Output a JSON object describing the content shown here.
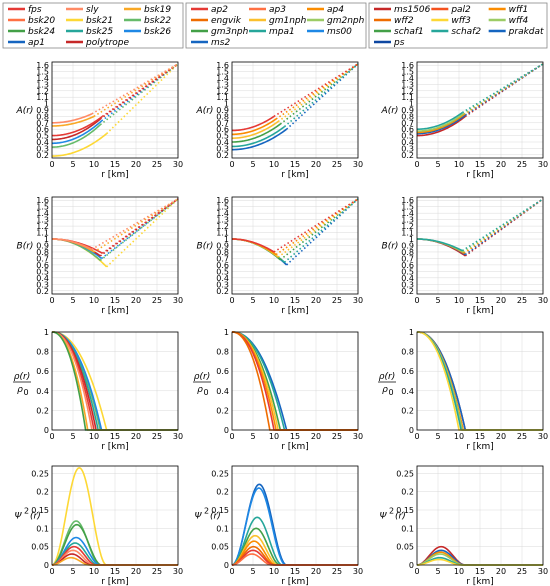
{
  "legends": [
    {
      "entries": [
        {
          "name": "fps",
          "color": "#e53935"
        },
        {
          "name": "sly",
          "color": "#ff8a65"
        },
        {
          "name": "bsk19",
          "color": "#f9a825"
        },
        {
          "name": "bsk20",
          "color": "#ff7043"
        },
        {
          "name": "bsk21",
          "color": "#fdd835"
        },
        {
          "name": "bsk22",
          "color": "#66bb6a"
        },
        {
          "name": "bsk24",
          "color": "#43a047"
        },
        {
          "name": "bsk25",
          "color": "#26a69a"
        },
        {
          "name": "bsk26",
          "color": "#1e88e5"
        },
        {
          "name": "ap1",
          "color": "#1565c0"
        },
        {
          "name": "polytrope",
          "color": "#c62828"
        }
      ]
    },
    {
      "entries": [
        {
          "name": "ap2",
          "color": "#e53935"
        },
        {
          "name": "ap3",
          "color": "#ff7043"
        },
        {
          "name": "ap4",
          "color": "#fb8c00"
        },
        {
          "name": "engvik",
          "color": "#ef6c00"
        },
        {
          "name": "gm1nph",
          "color": "#fbc02d"
        },
        {
          "name": "gm2nph",
          "color": "#9ccc65"
        },
        {
          "name": "gm3nph",
          "color": "#43a047"
        },
        {
          "name": "mpa1",
          "color": "#26a69a"
        },
        {
          "name": "ms00",
          "color": "#1e88e5"
        },
        {
          "name": "ms2",
          "color": "#1565c0"
        }
      ]
    },
    {
      "entries": [
        {
          "name": "ms1506",
          "color": "#c62828"
        },
        {
          "name": "pal2",
          "color": "#f4511e"
        },
        {
          "name": "wff1",
          "color": "#fb8c00"
        },
        {
          "name": "wff2",
          "color": "#ef6c00"
        },
        {
          "name": "wff3",
          "color": "#fdd835"
        },
        {
          "name": "wff4",
          "color": "#9ccc65"
        },
        {
          "name": "schaf1",
          "color": "#43a047"
        },
        {
          "name": "schaf2",
          "color": "#26a69a"
        },
        {
          "name": "prakdat",
          "color": "#1565c0"
        },
        {
          "name": "ps",
          "color": "#0d47a1"
        }
      ]
    }
  ],
  "row_labels": {
    "A": "A(r)",
    "B": "B(r)",
    "rho_num": "ρ(r)",
    "rho_den": "ρ",
    "rho_sub": "0",
    "psi": "Ψ",
    "psi_sup": "2",
    "psi_arg": "(r)"
  },
  "xlabel": "r [km]",
  "chart_data": [
    {
      "type": "line",
      "panel": "A(r) group 1",
      "xlabel": "r [km]",
      "ylabel": "A(r)",
      "xlim": [
        0,
        30
      ],
      "ylim": [
        0.15,
        1.65
      ],
      "xticks": [
        0,
        5,
        10,
        15,
        20,
        25,
        30
      ],
      "yticks": [
        0.2,
        0.3,
        0.4,
        0.5,
        0.6,
        0.7,
        0.8,
        0.9,
        1.0,
        1.1,
        1.2,
        1.3,
        1.4,
        1.5,
        1.6
      ],
      "grid": true,
      "series": [
        {
          "center_value": 0.18,
          "surface_radius": 13.0,
          "surface_value": 0.53,
          "color": "#fdd835"
        },
        {
          "center_value": 0.32,
          "surface_radius": 11.5,
          "surface_value": 0.67,
          "color": "#66bb6a"
        },
        {
          "center_value": 0.38,
          "surface_radius": 11.8,
          "surface_value": 0.73,
          "color": "#1e88e5"
        },
        {
          "center_value": 0.44,
          "surface_radius": 11.5,
          "surface_value": 0.76,
          "color": "#c62828"
        },
        {
          "center_value": 0.5,
          "surface_radius": 12.0,
          "surface_value": 0.8,
          "color": "#e53935"
        },
        {
          "center_value": 0.65,
          "surface_radius": 10.0,
          "surface_value": 0.8,
          "color": "#f9a825"
        },
        {
          "center_value": 0.7,
          "surface_radius": 9.5,
          "surface_value": 0.84,
          "color": "#ff8a65"
        }
      ]
    },
    {
      "type": "line",
      "panel": "A(r) group 2",
      "xlabel": "r [km]",
      "ylabel": "A(r)",
      "xlim": [
        0,
        30
      ],
      "ylim": [
        0.15,
        1.65
      ],
      "xticks": [
        0,
        5,
        10,
        15,
        20,
        25,
        30
      ],
      "yticks": [
        0.2,
        0.3,
        0.4,
        0.5,
        0.6,
        0.7,
        0.8,
        0.9,
        1.0,
        1.1,
        1.2,
        1.3,
        1.4,
        1.5,
        1.6
      ],
      "grid": true,
      "series": [
        {
          "center_value": 0.28,
          "surface_radius": 13.0,
          "surface_value": 0.6,
          "color": "#1565c0"
        },
        {
          "center_value": 0.33,
          "surface_radius": 12.5,
          "surface_value": 0.64,
          "color": "#26a69a"
        },
        {
          "center_value": 0.4,
          "surface_radius": 11.5,
          "surface_value": 0.68,
          "color": "#43a047"
        },
        {
          "center_value": 0.46,
          "surface_radius": 11.0,
          "surface_value": 0.72,
          "color": "#fbc02d"
        },
        {
          "center_value": 0.52,
          "surface_radius": 10.5,
          "surface_value": 0.76,
          "color": "#fb8c00"
        },
        {
          "center_value": 0.58,
          "surface_radius": 10.0,
          "surface_value": 0.8,
          "color": "#e53935"
        }
      ]
    },
    {
      "type": "line",
      "panel": "A(r) group 3",
      "xlabel": "r [km]",
      "ylabel": "A(r)",
      "xlim": [
        0,
        30
      ],
      "ylim": [
        0.15,
        1.65
      ],
      "xticks": [
        0,
        5,
        10,
        15,
        20,
        25,
        30
      ],
      "yticks": [
        0.2,
        0.3,
        0.4,
        0.5,
        0.6,
        0.7,
        0.8,
        0.9,
        1.0,
        1.1,
        1.2,
        1.3,
        1.4,
        1.5,
        1.6
      ],
      "grid": true,
      "series": [
        {
          "center_value": 0.5,
          "surface_radius": 11.5,
          "surface_value": 0.8,
          "color": "#c62828"
        },
        {
          "center_value": 0.53,
          "surface_radius": 11.5,
          "surface_value": 0.82,
          "color": "#1565c0"
        },
        {
          "center_value": 0.55,
          "surface_radius": 11.2,
          "surface_value": 0.83,
          "color": "#fb8c00"
        },
        {
          "center_value": 0.57,
          "surface_radius": 11.0,
          "surface_value": 0.84,
          "color": "#9ccc65"
        },
        {
          "center_value": 0.6,
          "surface_radius": 10.8,
          "surface_value": 0.86,
          "color": "#26a69a"
        }
      ]
    },
    {
      "type": "line",
      "panel": "B(r) group 1",
      "xlabel": "r [km]",
      "ylabel": "B(r)",
      "xlim": [
        0,
        30
      ],
      "ylim": [
        0.15,
        1.65
      ],
      "xticks": [
        0,
        5,
        10,
        15,
        20,
        25,
        30
      ],
      "yticks": [
        0.2,
        0.3,
        0.4,
        0.5,
        0.6,
        0.7,
        0.8,
        0.9,
        1.0,
        1.1,
        1.2,
        1.3,
        1.4,
        1.5,
        1.6
      ],
      "grid": true,
      "series": [
        {
          "center_value": 1.0,
          "surface_radius": 13.0,
          "surface_value": 0.57,
          "color": "#fdd835"
        },
        {
          "center_value": 1.0,
          "surface_radius": 11.5,
          "surface_value": 0.67,
          "color": "#66bb6a"
        },
        {
          "center_value": 1.0,
          "surface_radius": 11.8,
          "surface_value": 0.7,
          "color": "#1e88e5"
        },
        {
          "center_value": 1.0,
          "surface_radius": 11.5,
          "surface_value": 0.74,
          "color": "#c62828"
        },
        {
          "center_value": 1.0,
          "surface_radius": 12.0,
          "surface_value": 0.78,
          "color": "#e53935"
        },
        {
          "center_value": 1.0,
          "surface_radius": 10.0,
          "surface_value": 0.8,
          "color": "#f9a825"
        },
        {
          "center_value": 1.0,
          "surface_radius": 9.5,
          "surface_value": 0.84,
          "color": "#ff8a65"
        }
      ]
    },
    {
      "type": "line",
      "panel": "B(r) group 2",
      "xlabel": "r [km]",
      "ylabel": "B(r)",
      "xlim": [
        0,
        30
      ],
      "ylim": [
        0.15,
        1.65
      ],
      "xticks": [
        0,
        5,
        10,
        15,
        20,
        25,
        30
      ],
      "yticks": [
        0.2,
        0.3,
        0.4,
        0.5,
        0.6,
        0.7,
        0.8,
        0.9,
        1.0,
        1.1,
        1.2,
        1.3,
        1.4,
        1.5,
        1.6
      ],
      "grid": true,
      "series": [
        {
          "center_value": 1.0,
          "surface_radius": 13.0,
          "surface_value": 0.6,
          "color": "#1565c0"
        },
        {
          "center_value": 1.0,
          "surface_radius": 12.5,
          "surface_value": 0.64,
          "color": "#26a69a"
        },
        {
          "center_value": 1.0,
          "surface_radius": 11.5,
          "surface_value": 0.68,
          "color": "#43a047"
        },
        {
          "center_value": 1.0,
          "surface_radius": 11.0,
          "surface_value": 0.72,
          "color": "#fbc02d"
        },
        {
          "center_value": 1.0,
          "surface_radius": 10.5,
          "surface_value": 0.76,
          "color": "#fb8c00"
        },
        {
          "center_value": 1.0,
          "surface_radius": 10.0,
          "surface_value": 0.8,
          "color": "#e53935"
        }
      ]
    },
    {
      "type": "line",
      "panel": "B(r) group 3",
      "xlabel": "r [km]",
      "ylabel": "B(r)",
      "xlim": [
        0,
        30
      ],
      "ylim": [
        0.15,
        1.65
      ],
      "xticks": [
        0,
        5,
        10,
        15,
        20,
        25,
        30
      ],
      "yticks": [
        0.2,
        0.3,
        0.4,
        0.5,
        0.6,
        0.7,
        0.8,
        0.9,
        1.0,
        1.1,
        1.2,
        1.3,
        1.4,
        1.5,
        1.6
      ],
      "grid": true,
      "series": [
        {
          "center_value": 1.0,
          "surface_radius": 11.5,
          "surface_value": 0.74,
          "color": "#c62828"
        },
        {
          "center_value": 1.0,
          "surface_radius": 11.5,
          "surface_value": 0.76,
          "color": "#1565c0"
        },
        {
          "center_value": 1.0,
          "surface_radius": 11.2,
          "surface_value": 0.78,
          "color": "#fb8c00"
        },
        {
          "center_value": 1.0,
          "surface_radius": 11.0,
          "surface_value": 0.8,
          "color": "#9ccc65"
        },
        {
          "center_value": 1.0,
          "surface_radius": 10.8,
          "surface_value": 0.82,
          "color": "#26a69a"
        }
      ]
    },
    {
      "type": "line",
      "panel": "rho group 1",
      "xlabel": "r [km]",
      "ylabel": "ρ(r)/ρ0",
      "xlim": [
        0,
        30
      ],
      "ylim": [
        0,
        1
      ],
      "xticks": [
        0,
        5,
        10,
        15,
        20,
        25,
        30
      ],
      "yticks": [
        0,
        0.2,
        0.4,
        0.6,
        0.8,
        1
      ],
      "grid": true,
      "series": [
        {
          "radius": 13.0,
          "color": "#fdd835"
        },
        {
          "radius": 11.5,
          "color": "#66bb6a"
        },
        {
          "radius": 11.8,
          "color": "#1e88e5"
        },
        {
          "radius": 11.0,
          "color": "#26a69a"
        },
        {
          "radius": 10.5,
          "color": "#c62828"
        },
        {
          "radius": 10.0,
          "color": "#e53935"
        },
        {
          "radius": 9.5,
          "color": "#ff8a65"
        },
        {
          "radius": 8.5,
          "color": "#f9a825"
        },
        {
          "radius": 8.0,
          "color": "#43a047"
        }
      ]
    },
    {
      "type": "line",
      "panel": "rho group 2",
      "xlabel": "r [km]",
      "ylabel": "ρ(r)/ρ0",
      "xlim": [
        0,
        30
      ],
      "ylim": [
        0,
        1
      ],
      "xticks": [
        0,
        5,
        10,
        15,
        20,
        25,
        30
      ],
      "yticks": [
        0,
        0.2,
        0.4,
        0.6,
        0.8,
        1
      ],
      "grid": true,
      "series": [
        {
          "radius": 13.0,
          "color": "#1565c0"
        },
        {
          "radius": 12.5,
          "color": "#26a69a"
        },
        {
          "radius": 11.5,
          "color": "#43a047"
        },
        {
          "radius": 11.0,
          "color": "#fbc02d"
        },
        {
          "radius": 10.5,
          "color": "#fb8c00"
        },
        {
          "radius": 10.0,
          "color": "#e53935"
        },
        {
          "radius": 9.0,
          "color": "#ef6c00"
        }
      ]
    },
    {
      "type": "line",
      "panel": "rho group 3",
      "xlabel": "r [km]",
      "ylabel": "ρ(r)/ρ0",
      "xlim": [
        0,
        30
      ],
      "ylim": [
        0,
        1
      ],
      "xticks": [
        0,
        5,
        10,
        15,
        20,
        25,
        30
      ],
      "yticks": [
        0,
        0.2,
        0.4,
        0.6,
        0.8,
        1
      ],
      "grid": true,
      "series": [
        {
          "radius": 11.5,
          "color": "#c62828"
        },
        {
          "radius": 11.5,
          "color": "#1565c0"
        },
        {
          "radius": 11.0,
          "color": "#fb8c00"
        },
        {
          "radius": 10.8,
          "color": "#9ccc65"
        },
        {
          "radius": 10.5,
          "color": "#26a69a"
        },
        {
          "radius": 10.0,
          "color": "#fdd835"
        }
      ]
    },
    {
      "type": "line",
      "panel": "psi2 group 1",
      "xlabel": "r [km]",
      "ylabel": "Ψ²(r)",
      "xlim": [
        0,
        30
      ],
      "ylim": [
        0,
        0.27
      ],
      "xticks": [
        0,
        5,
        10,
        15,
        20,
        25,
        30
      ],
      "yticks": [
        0,
        0.05,
        0.1,
        0.15,
        0.2,
        0.25
      ],
      "grid": true,
      "series": [
        {
          "peak": 0.265,
          "radius": 13.0,
          "color": "#fdd835"
        },
        {
          "peak": 0.12,
          "radius": 11.5,
          "color": "#66bb6a"
        },
        {
          "peak": 0.11,
          "radius": 11.8,
          "color": "#43a047"
        },
        {
          "peak": 0.075,
          "radius": 11.5,
          "color": "#1e88e5"
        },
        {
          "peak": 0.06,
          "radius": 11.0,
          "color": "#26a69a"
        },
        {
          "peak": 0.05,
          "radius": 10.5,
          "color": "#e53935"
        },
        {
          "peak": 0.04,
          "radius": 10.0,
          "color": "#ff8a65"
        },
        {
          "peak": 0.03,
          "radius": 9.5,
          "color": "#c62828"
        },
        {
          "peak": 0.02,
          "radius": 9.0,
          "color": "#f9a825"
        }
      ]
    },
    {
      "type": "line",
      "panel": "psi2 group 2",
      "xlabel": "r [km]",
      "ylabel": "Ψ²(r)",
      "xlim": [
        0,
        30
      ],
      "ylim": [
        0,
        0.27
      ],
      "xticks": [
        0,
        5,
        10,
        15,
        20,
        25,
        30
      ],
      "yticks": [
        0,
        0.05,
        0.1,
        0.15,
        0.2,
        0.25
      ],
      "grid": true,
      "series": [
        {
          "peak": 0.22,
          "radius": 13.0,
          "color": "#1565c0"
        },
        {
          "peak": 0.21,
          "radius": 12.8,
          "color": "#1e88e5"
        },
        {
          "peak": 0.13,
          "radius": 12.0,
          "color": "#26a69a"
        },
        {
          "peak": 0.1,
          "radius": 11.5,
          "color": "#43a047"
        },
        {
          "peak": 0.08,
          "radius": 11.0,
          "color": "#fbc02d"
        },
        {
          "peak": 0.065,
          "radius": 10.5,
          "color": "#fb8c00"
        },
        {
          "peak": 0.05,
          "radius": 10.2,
          "color": "#ef6c00"
        },
        {
          "peak": 0.04,
          "radius": 10.0,
          "color": "#e53935"
        },
        {
          "peak": 0.03,
          "radius": 9.5,
          "color": "#ff7043"
        }
      ]
    },
    {
      "type": "line",
      "panel": "psi2 group 3",
      "xlabel": "r [km]",
      "ylabel": "Ψ²(r)",
      "xlim": [
        0,
        30
      ],
      "ylim": [
        0,
        0.27
      ],
      "xticks": [
        0,
        5,
        10,
        15,
        20,
        25,
        30
      ],
      "yticks": [
        0,
        0.05,
        0.1,
        0.15,
        0.2,
        0.25
      ],
      "grid": true,
      "series": [
        {
          "peak": 0.05,
          "radius": 11.5,
          "color": "#c62828"
        },
        {
          "peak": 0.04,
          "radius": 11.5,
          "color": "#1565c0"
        },
        {
          "peak": 0.035,
          "radius": 11.2,
          "color": "#fb8c00"
        },
        {
          "peak": 0.03,
          "radius": 11.0,
          "color": "#9ccc65"
        },
        {
          "peak": 0.02,
          "radius": 10.8,
          "color": "#26a69a"
        },
        {
          "peak": 0.015,
          "radius": 10.5,
          "color": "#fdd835"
        }
      ]
    }
  ]
}
